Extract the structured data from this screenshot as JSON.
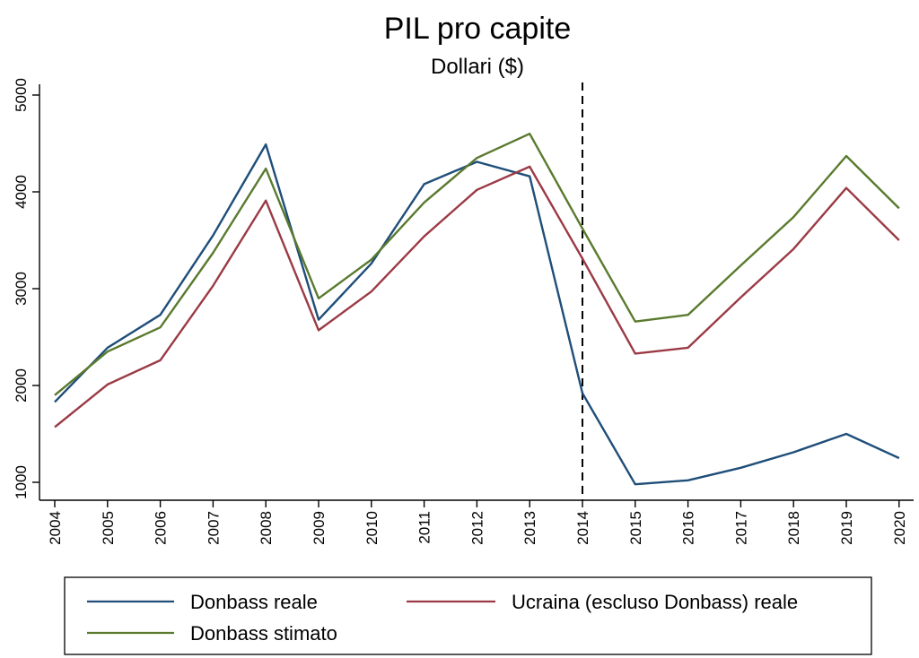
{
  "chart_data": {
    "type": "line",
    "title": "PIL pro capite",
    "subtitle": "Dollari ($)",
    "xlabel": "",
    "ylabel": "",
    "categories": [
      "2004",
      "2005",
      "2006",
      "2007",
      "2008",
      "2009",
      "2010",
      "2011",
      "2012",
      "2013",
      "2014",
      "2015",
      "2016",
      "2017",
      "2018",
      "2019",
      "2020"
    ],
    "ylim": [
      1000,
      5000
    ],
    "yticks": [
      "1000",
      "2000",
      "3000",
      "4000",
      "5000"
    ],
    "reference_line": {
      "x": "2014",
      "style": "dashed"
    },
    "grid": false,
    "legend_position": "bottom",
    "series": [
      {
        "name": "Donbass reale",
        "color": "#1f4e79",
        "values": [
          1830,
          2390,
          2730,
          3550,
          4490,
          2680,
          3260,
          4080,
          4310,
          4160,
          1920,
          980,
          1020,
          1150,
          1310,
          1500,
          1250
        ]
      },
      {
        "name": "Ucraina (escluso Donbass) reale",
        "color": "#9b3a45",
        "values": [
          1570,
          2010,
          2260,
          3030,
          3910,
          2570,
          2970,
          3540,
          4020,
          4260,
          3310,
          2330,
          2390,
          2910,
          3410,
          4040,
          3500
        ]
      },
      {
        "name": "Donbass stimato",
        "color": "#5a7a2e",
        "values": [
          1900,
          2350,
          2600,
          3370,
          4240,
          2900,
          3300,
          3890,
          4350,
          4600,
          3620,
          2660,
          2730,
          3240,
          3740,
          4370,
          3830
        ]
      }
    ]
  }
}
